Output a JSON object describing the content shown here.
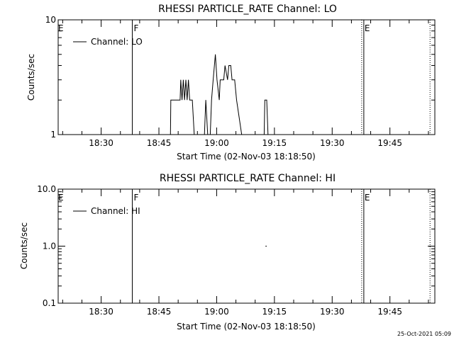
{
  "chart_data": [
    {
      "type": "line",
      "title": "RHESSI PARTICLE_RATE Channel: LO",
      "xlabel": "Start Time (02-Nov-03 18:18:50)",
      "ylabel": "Counts/sec",
      "y_scale": "log",
      "ylim": [
        1,
        10
      ],
      "y_tick_labels": [
        "1",
        "10"
      ],
      "x_tick_labels": [
        "18:30",
        "18:45",
        "19:00",
        "19:15",
        "19:30",
        "19:45"
      ],
      "legend": {
        "label": "Channel: LO",
        "placement": "top-left"
      },
      "markers": [
        {
          "label": "E",
          "time": "18:18:50",
          "style": "solid"
        },
        {
          "label": "F",
          "time": "18:38:05",
          "style": "solid"
        },
        {
          "label": "E",
          "time": "19:37:40",
          "style": "dotted"
        },
        {
          "label": "E",
          "time": "19:37:40",
          "style": "solid"
        },
        {
          "label": "",
          "time": "19:55:25",
          "style": "dotted"
        }
      ],
      "series": [
        {
          "name": "Channel: LO",
          "points": [
            [
              "18:48:00",
              1
            ],
            [
              "18:48:05",
              2
            ],
            [
              "18:50:30",
              2
            ],
            [
              "18:50:40",
              3
            ],
            [
              "18:51:00",
              2
            ],
            [
              "18:51:20",
              3
            ],
            [
              "18:51:40",
              2
            ],
            [
              "18:52:00",
              3
            ],
            [
              "18:52:20",
              2
            ],
            [
              "18:52:40",
              3
            ],
            [
              "18:53:00",
              2
            ],
            [
              "18:53:40",
              2
            ],
            [
              "18:54:10",
              1
            ],
            [
              "18:56:50",
              1
            ],
            [
              "18:57:10",
              2
            ],
            [
              "18:57:40",
              1
            ],
            [
              "18:58:20",
              1
            ],
            [
              "18:58:40",
              2
            ],
            [
              "18:59:05",
              3
            ],
            [
              "18:59:40",
              5
            ],
            [
              "19:00:05",
              3
            ],
            [
              "19:00:40",
              2
            ],
            [
              "19:00:55",
              3
            ],
            [
              "19:01:50",
              3
            ],
            [
              "19:02:10",
              4
            ],
            [
              "19:02:50",
              3
            ],
            [
              "19:03:10",
              4
            ],
            [
              "19:03:40",
              4
            ],
            [
              "19:04:00",
              3
            ],
            [
              "19:04:40",
              3
            ],
            [
              "19:05:10",
              2
            ],
            [
              "19:06:30",
              1
            ],
            [
              "19:12:20",
              1
            ],
            [
              "19:12:30",
              2
            ],
            [
              "19:13:00",
              2
            ],
            [
              "19:13:20",
              1
            ]
          ]
        }
      ]
    },
    {
      "type": "line",
      "title": "RHESSI PARTICLE_RATE Channel: HI",
      "xlabel": "Start Time (02-Nov-03 18:18:50)",
      "ylabel": "Counts/sec",
      "y_scale": "log",
      "ylim": [
        0.1,
        10
      ],
      "y_tick_labels": [
        "0.1",
        "1.0",
        "10.0"
      ],
      "x_tick_labels": [
        "18:30",
        "18:45",
        "19:00",
        "19:15",
        "19:30",
        "19:45"
      ],
      "legend": {
        "label": "Channel: HI",
        "placement": "top-left"
      },
      "markers": [
        {
          "label": "E",
          "time": "18:18:50",
          "style": "solid"
        },
        {
          "label": "F",
          "time": "18:38:05",
          "style": "solid"
        },
        {
          "label": "E",
          "time": "19:37:40",
          "style": "dotted"
        },
        {
          "label": "E",
          "time": "19:37:40",
          "style": "solid"
        },
        {
          "label": "",
          "time": "19:55:25",
          "style": "dotted"
        }
      ],
      "series": [
        {
          "name": "Channel: HI",
          "points": [
            [
              "19:12:40",
              1
            ],
            [
              "19:13:00",
              1
            ]
          ]
        }
      ]
    }
  ],
  "footer_timestamp": "25-Oct-2021 05:09"
}
